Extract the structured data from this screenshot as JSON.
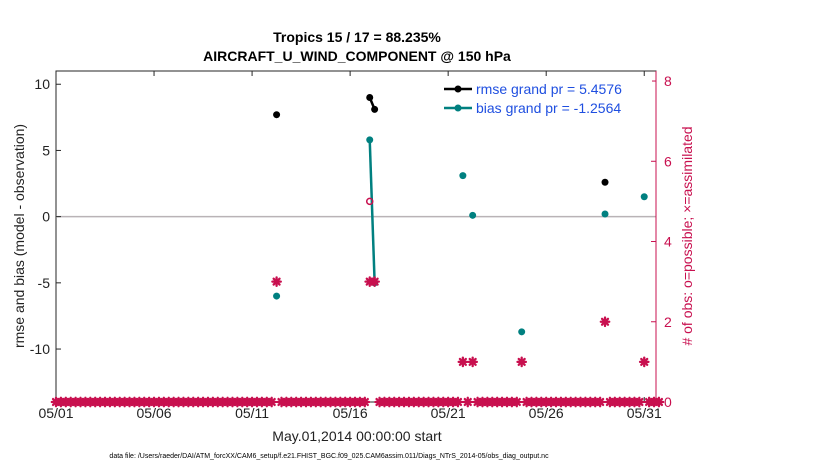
{
  "chart_data": {
    "type": "line",
    "title": "Tropics 15 / 17 = 88.235%",
    "subtitle": "AIRCRAFT_U_WIND_COMPONENT @ 150 hPa",
    "xlabel": "May.01,2014 00:00:00 start",
    "ylabel": "rmse and bias (model - observation)",
    "y2label": "# of obs: o=possible; ×=assimilated",
    "footnote": "data file: /Users/raeder/DAI/ATM_forcXX/CAM6_setup/f.e21.FHIST_BGC.f09_025.CAM6assim.011/Diags_NTrS_2014-05/obs_diag_output.nc",
    "xlim": [
      1,
      31.6
    ],
    "ylim": [
      -14,
      11
    ],
    "y2lim": [
      0,
      8.25
    ],
    "x_ticks": [
      {
        "v": 1,
        "label": "05/01"
      },
      {
        "v": 6,
        "label": "05/06"
      },
      {
        "v": 11,
        "label": "05/11"
      },
      {
        "v": 16,
        "label": "05/16"
      },
      {
        "v": 21,
        "label": "05/21"
      },
      {
        "v": 26,
        "label": "05/26"
      },
      {
        "v": 31,
        "label": "05/31"
      }
    ],
    "y_ticks": [
      {
        "v": 10,
        "label": "10"
      },
      {
        "v": 5,
        "label": "5"
      },
      {
        "v": 0,
        "label": "0"
      },
      {
        "v": -5,
        "label": "-5"
      },
      {
        "v": -10,
        "label": "-10"
      }
    ],
    "y2_ticks": [
      {
        "v": 0,
        "label": "0"
      },
      {
        "v": 2,
        "label": "2"
      },
      {
        "v": 4,
        "label": "4"
      },
      {
        "v": 6,
        "label": "6"
      },
      {
        "v": 8,
        "label": "8"
      }
    ],
    "zero_line": 0,
    "legend_position": "top-right",
    "series": [
      {
        "name": "rmse grand pr = 5.4576",
        "color": "#000000",
        "axis": "left",
        "points": [
          [
            12.25,
            7.7
          ],
          [
            17.0,
            9.0
          ],
          [
            17.25,
            8.1
          ],
          [
            29.0,
            2.6
          ]
        ],
        "segments": [
          [
            [
              17.0,
              9.0
            ],
            [
              17.25,
              8.1
            ]
          ]
        ]
      },
      {
        "name": "bias grand pr = -1.2564",
        "color": "#008080",
        "axis": "left",
        "points": [
          [
            12.25,
            -6.0
          ],
          [
            17.0,
            5.8
          ],
          [
            17.25,
            -5.0
          ],
          [
            21.75,
            3.1
          ],
          [
            22.25,
            0.1
          ],
          [
            24.75,
            -8.7
          ],
          [
            29.0,
            0.2
          ],
          [
            31.0,
            1.5
          ]
        ],
        "segments": [
          [
            [
              17.0,
              5.8
            ],
            [
              17.25,
              -5.0
            ]
          ]
        ]
      },
      {
        "name": "possible",
        "color": "#c8104f",
        "axis": "right",
        "marker": "circle",
        "points": [
          [
            17.0,
            5.0
          ]
        ]
      },
      {
        "name": "assimilated",
        "color": "#c8104f",
        "axis": "right",
        "marker": "x",
        "zero_from": 1.0,
        "zero_to": 31.75,
        "zero_step": 0.25,
        "nonzero": [
          [
            12.25,
            3
          ],
          [
            17.0,
            3
          ],
          [
            17.25,
            3
          ],
          [
            21.75,
            1
          ],
          [
            22.25,
            1
          ],
          [
            24.75,
            1
          ],
          [
            29.0,
            2
          ],
          [
            31.0,
            1
          ]
        ]
      }
    ]
  }
}
